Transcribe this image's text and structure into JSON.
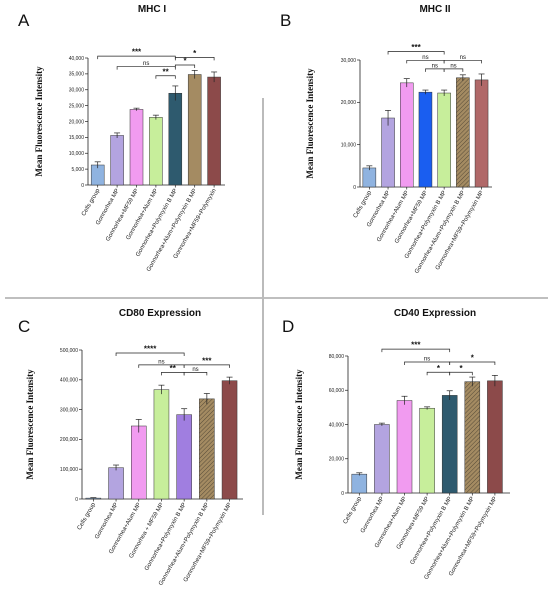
{
  "chart_data": [
    {
      "type": "bar",
      "panel": "A",
      "title": "MHC I",
      "ylabel": "Mean Fluorescence Intensity",
      "ylim": [
        0,
        40000
      ],
      "yticks": [
        0,
        5000,
        10000,
        15000,
        20000,
        25000,
        30000,
        35000,
        40000
      ],
      "ytick_labels": [
        "0",
        "5,000",
        "10,000",
        "15,000",
        "20,000",
        "25,000",
        "30,000",
        "35,000",
        "40,000"
      ],
      "categories": [
        "Cells group",
        "Gonnorhea MP",
        "Gonnorhea+MF59 MP",
        "Gonnorhea+Alum MP",
        "Gonnorhea+Polymyxin B MP",
        "Gonnorhea+Alum+Polymyxin B MP",
        "Gonnorhea+MF59+Polymyxin"
      ],
      "values": [
        6300,
        15600,
        23800,
        21300,
        28900,
        34800,
        34000
      ],
      "errors": [
        1000,
        800,
        400,
        700,
        2300,
        1300,
        1600
      ],
      "colors": [
        "#8fb3e0",
        "#b3a4e0",
        "#f19bf0",
        "#c7ee9b",
        "#2e5a6e",
        "#a48b62",
        "#8c4a4a"
      ],
      "comparisons": [
        {
          "from": 0,
          "to": 4,
          "label": "***",
          "level": 40600
        },
        {
          "from": 1,
          "to": 4,
          "label": "ns",
          "level": 37300
        },
        {
          "from": 3,
          "to": 4,
          "label": "**",
          "level": 34400
        },
        {
          "from": 4,
          "to": 5,
          "label": "*",
          "level": 37800
        },
        {
          "from": 4,
          "to": 6,
          "label": "*",
          "level": 40200
        }
      ]
    },
    {
      "type": "bar",
      "panel": "B",
      "title": "MHC II",
      "ylabel": "Mean Fluorescence Intensity",
      "ylim": [
        0,
        30000
      ],
      "yticks": [
        0,
        10000,
        20000,
        30000
      ],
      "ytick_labels": [
        "0",
        "10,000",
        "20,000",
        "30,000"
      ],
      "categories": [
        "Cells group",
        "Gonnorhea MP",
        "Gonnorhea+Alum MP",
        "Gonnorhea+MF59 MP",
        "Gonnorhea+Polymyxin B MP",
        "Gonnorhea+Alum+Polymyxin B MP",
        "Gonnorhea+MF59+Polymyxin MP"
      ],
      "values": [
        4500,
        16300,
        24600,
        22400,
        22200,
        25800,
        25300
      ],
      "errors": [
        500,
        1800,
        1000,
        500,
        700,
        700,
        1400
      ],
      "colors": [
        "#8fb3e0",
        "#b3a4e0",
        "#f19bf0",
        "#1a5ef0",
        "#c7ee9b",
        "#a48b62",
        "#b06868"
      ],
      "comparisons": [
        {
          "from": 1,
          "to": 4,
          "label": "***",
          "level": 32000
        },
        {
          "from": 2,
          "to": 4,
          "label": "ns",
          "level": 29900
        },
        {
          "from": 3,
          "to": 4,
          "label": "ns",
          "level": 27900
        },
        {
          "from": 4,
          "to": 5,
          "label": "ns",
          "level": 27900
        },
        {
          "from": 4,
          "to": 6,
          "label": "ns",
          "level": 29900
        }
      ]
    },
    {
      "type": "bar",
      "panel": "C",
      "title": "CD80 Expression",
      "ylabel": "Mean Fluorescence Intensity",
      "ylim": [
        0,
        500000
      ],
      "yticks": [
        0,
        100000,
        200000,
        300000,
        400000,
        500000
      ],
      "ytick_labels": [
        "0",
        "100,000",
        "200,000",
        "300,000",
        "400,000",
        "500,000"
      ],
      "categories": [
        "Cells group",
        "Gonnorhea MP",
        "Gonnorhea+Alum MP",
        "Gonnorhea + MF59 MP",
        "Gonnorhea+Polymyxin B MP",
        "Gonnorhea+Alum+Polymyxin B MP",
        "Gonnorhea+MF59+Polymyxin MP"
      ],
      "values": [
        3000,
        105000,
        245000,
        367000,
        283000,
        336000,
        397000
      ],
      "errors": [
        1500,
        9000,
        22000,
        15000,
        20000,
        18000,
        12000
      ],
      "colors": [
        "#8fb3e0",
        "#b3a4e0",
        "#f19bf0",
        "#c7ee9b",
        "#a07ee0",
        "#a48b62",
        "#8c4a4a"
      ],
      "comparisons": [
        {
          "from": 1,
          "to": 4,
          "label": "****",
          "level": 490000
        },
        {
          "from": 2,
          "to": 4,
          "label": "ns",
          "level": 450000
        },
        {
          "from": 3,
          "to": 4,
          "label": "**",
          "level": 425000
        },
        {
          "from": 4,
          "to": 5,
          "label": "ns",
          "level": 425000
        },
        {
          "from": 4,
          "to": 6,
          "label": "***",
          "level": 450000
        }
      ]
    },
    {
      "type": "bar",
      "panel": "D",
      "title": "CD40 Expression",
      "ylabel": "Mean Fluorescence Intensity",
      "ylim": [
        0,
        80000
      ],
      "yticks": [
        0,
        20000,
        40000,
        60000,
        80000
      ],
      "ytick_labels": [
        "0",
        "20,000",
        "40,000",
        "60,000",
        "80,000"
      ],
      "categories": [
        "Cells group",
        "Gonnorhea MP",
        "Gonnorhea+Alum MP",
        "Gonnorhea+MF59 MP",
        "Gonnorhea+Polymyxin B MP",
        "Gonnorhea+Alum+Polymyxin B MP",
        "Gonnorhea+MF59+Polymyxin MP"
      ],
      "values": [
        11000,
        40000,
        54000,
        49500,
        57000,
        65000,
        65500
      ],
      "errors": [
        800,
        800,
        2500,
        800,
        2700,
        2700,
        3200
      ],
      "colors": [
        "#8fb3e0",
        "#b3a4e0",
        "#f19bf0",
        "#c7ee9b",
        "#2e5a6e",
        "#a48b62",
        "#8c4a4a"
      ],
      "comparisons": [
        {
          "from": 1,
          "to": 4,
          "label": "***",
          "level": 84000
        },
        {
          "from": 2,
          "to": 4,
          "label": "ns",
          "level": 76500
        },
        {
          "from": 3,
          "to": 4,
          "label": "*",
          "level": 70500
        },
        {
          "from": 4,
          "to": 5,
          "label": "*",
          "level": 70500
        },
        {
          "from": 4,
          "to": 6,
          "label": "*",
          "level": 76500
        }
      ]
    }
  ]
}
